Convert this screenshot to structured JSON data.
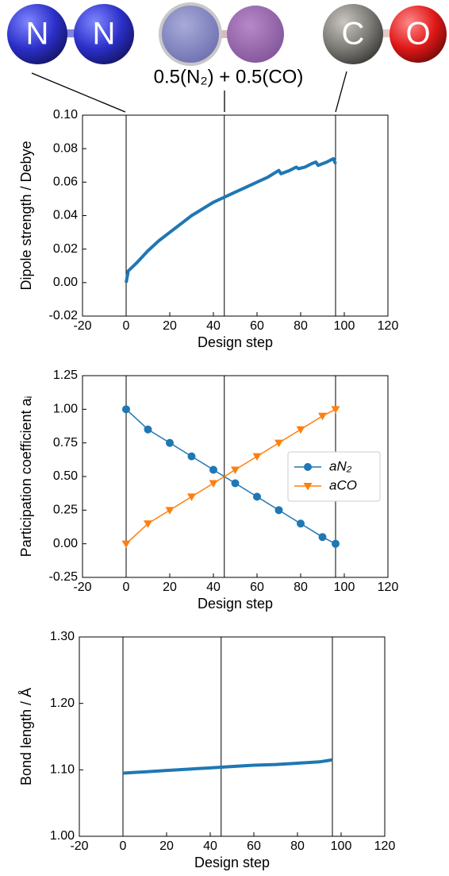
{
  "header": {
    "annotation": "0.5(N₂) + 0.5(CO)",
    "atoms": [
      "N",
      "N",
      "C",
      "O"
    ]
  },
  "chart_data": [
    {
      "type": "line",
      "xlabel": "Design step",
      "ylabel": "Dipole strength / Debye",
      "xlim": [
        -20,
        120
      ],
      "xticks": [
        -20,
        0,
        20,
        40,
        60,
        80,
        100,
        120
      ],
      "ylim": [
        -0.02,
        0.1
      ],
      "yticks": [
        {
          "value": -0.02,
          "label": "-0.02"
        },
        {
          "value": 0,
          "label": "0.00"
        },
        {
          "value": 0.02,
          "label": "0.02"
        },
        {
          "value": 0.04,
          "label": "0.04"
        },
        {
          "value": 0.06,
          "label": "0.06"
        },
        {
          "value": 0.08,
          "label": "0.08"
        },
        {
          "value": 0.1,
          "label": "0.10"
        }
      ],
      "vlines": [
        0,
        45,
        96
      ],
      "series": [
        {
          "color": "#1f77b4",
          "x": [
            0,
            1,
            5,
            10,
            15,
            20,
            25,
            30,
            35,
            40,
            45,
            50,
            55,
            60,
            65,
            70,
            71,
            75,
            78,
            79,
            82,
            85,
            87,
            88,
            92,
            95,
            96
          ],
          "values": [
            0,
            0.007,
            0.012,
            0.019,
            0.025,
            0.03,
            0.035,
            0.04,
            0.044,
            0.048,
            0.051,
            0.054,
            0.057,
            0.06,
            0.063,
            0.067,
            0.065,
            0.067,
            0.069,
            0.068,
            0.069,
            0.071,
            0.072,
            0.07,
            0.072,
            0.074,
            0.071
          ]
        }
      ]
    },
    {
      "type": "line",
      "xlabel": "Design step",
      "ylabel": "Participation coefficient aᵢ",
      "xlim": [
        -20,
        120
      ],
      "xticks": [
        -20,
        0,
        20,
        40,
        60,
        80,
        100,
        120
      ],
      "ylim": [
        -0.25,
        1.25
      ],
      "yticks": [
        {
          "value": -0.25,
          "label": "-0.25"
        },
        {
          "value": 0,
          "label": "0.00"
        },
        {
          "value": 0.25,
          "label": "0.25"
        },
        {
          "value": 0.5,
          "label": "0.50"
        },
        {
          "value": 0.75,
          "label": "0.75"
        },
        {
          "value": 1,
          "label": "1.00"
        },
        {
          "value": 1.25,
          "label": "1.25"
        }
      ],
      "vlines": [
        0,
        45,
        96
      ],
      "legend": "center right",
      "series": [
        {
          "name": "aN₂",
          "color": "#1f77b4",
          "marker": "circle",
          "x": [
            0,
            10,
            20,
            30,
            40,
            50,
            60,
            70,
            80,
            90,
            96
          ],
          "values": [
            1,
            0.85,
            0.75,
            0.65,
            0.55,
            0.45,
            0.35,
            0.25,
            0.15,
            0.05,
            0
          ]
        },
        {
          "name": "aCO",
          "color": "#ff7f0e",
          "marker": "triangle",
          "x": [
            0,
            10,
            20,
            30,
            40,
            50,
            60,
            70,
            80,
            90,
            96
          ],
          "values": [
            0,
            0.15,
            0.25,
            0.35,
            0.45,
            0.55,
            0.65,
            0.75,
            0.85,
            0.95,
            1
          ]
        }
      ]
    },
    {
      "type": "line",
      "xlabel": "Design step",
      "ylabel": "Bond length / Å",
      "xlim": [
        -20,
        120
      ],
      "xticks": [
        -20,
        0,
        20,
        40,
        60,
        80,
        100,
        120
      ],
      "ylim": [
        1.0,
        1.3
      ],
      "yticks": [
        {
          "value": 1.0,
          "label": "1.00"
        },
        {
          "value": 1.1,
          "label": "1.10"
        },
        {
          "value": 1.2,
          "label": "1.20"
        },
        {
          "value": 1.3,
          "label": "1.30"
        }
      ],
      "vlines": [
        0,
        45,
        96
      ],
      "series": [
        {
          "color": "#1f77b4",
          "x": [
            0,
            5,
            10,
            20,
            30,
            40,
            50,
            60,
            70,
            80,
            90,
            96
          ],
          "values": [
            1.095,
            1.096,
            1.097,
            1.099,
            1.101,
            1.103,
            1.105,
            1.107,
            1.108,
            1.11,
            1.112,
            1.115
          ]
        }
      ]
    }
  ]
}
